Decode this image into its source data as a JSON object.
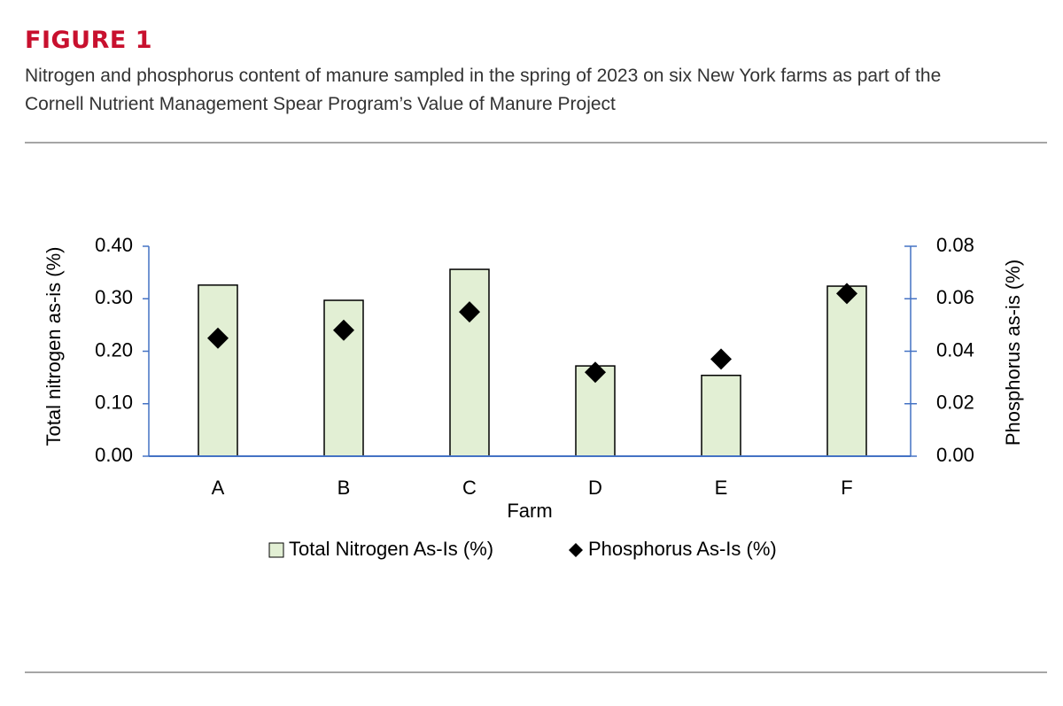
{
  "chart_data": {
    "type": "bar",
    "figure_label": "FIGURE 1",
    "title": "Nitrogen and phosphorus content of manure sampled in the spring of 2023 on six New York farms as part of the Cornell Nutrient Management Spear Program’s Value of Manure Project",
    "x_label": "Farm",
    "y_label": "Total nitrogen as-is (%)",
    "y2_label": "Phosphorus as-is (%)",
    "categories": [
      "A",
      "B",
      "C",
      "D",
      "E",
      "F"
    ],
    "series": [
      {
        "name": "Total Nitrogen As-Is (%)",
        "color": "#e2efd4",
        "type": "bar",
        "values": [
          0.326,
          0.297,
          0.356,
          0.172,
          0.154,
          0.324
        ]
      },
      {
        "name": "Phosphorus As-Is (%)",
        "color": "#000000",
        "type": "scatter",
        "axis": "y2",
        "values": [
          0.045,
          0.048,
          0.055,
          0.032,
          0.037,
          0.062
        ]
      }
    ],
    "ylim": [
      0,
      0.4
    ],
    "yticks": [
      {
        "value": 0,
        "label": "0.00"
      },
      {
        "value": 0.1,
        "label": "0.10"
      },
      {
        "value": 0.2,
        "label": "0.20"
      },
      {
        "value": 0.3,
        "label": "0.30"
      },
      {
        "value": 0.4,
        "label": "0.40"
      }
    ],
    "y2lim": [
      0,
      0.08
    ],
    "y2ticks": [
      {
        "value": 0,
        "label": "0.00"
      },
      {
        "value": 0.02,
        "label": "0.02"
      },
      {
        "value": 0.04,
        "label": "0.04"
      },
      {
        "value": 0.06,
        "label": "0.06"
      },
      {
        "value": 0.08,
        "label": "0.08"
      }
    ],
    "axis_color": "#4472c4",
    "legend": "bottom"
  }
}
